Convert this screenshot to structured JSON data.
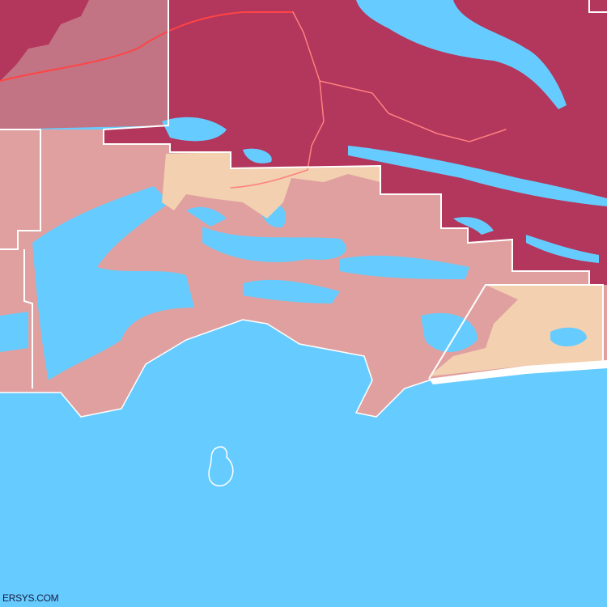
{
  "map": {
    "watermark": "ERSYS.COM",
    "colors": {
      "water": "#66CCFF",
      "region_dark": "#B3365C",
      "region_mauve": "#C27384",
      "region_pink": "#E0A0A0",
      "region_peach": "#F2D0B0",
      "boundary": "#FFFFFF",
      "road": "#FF5555"
    }
  }
}
